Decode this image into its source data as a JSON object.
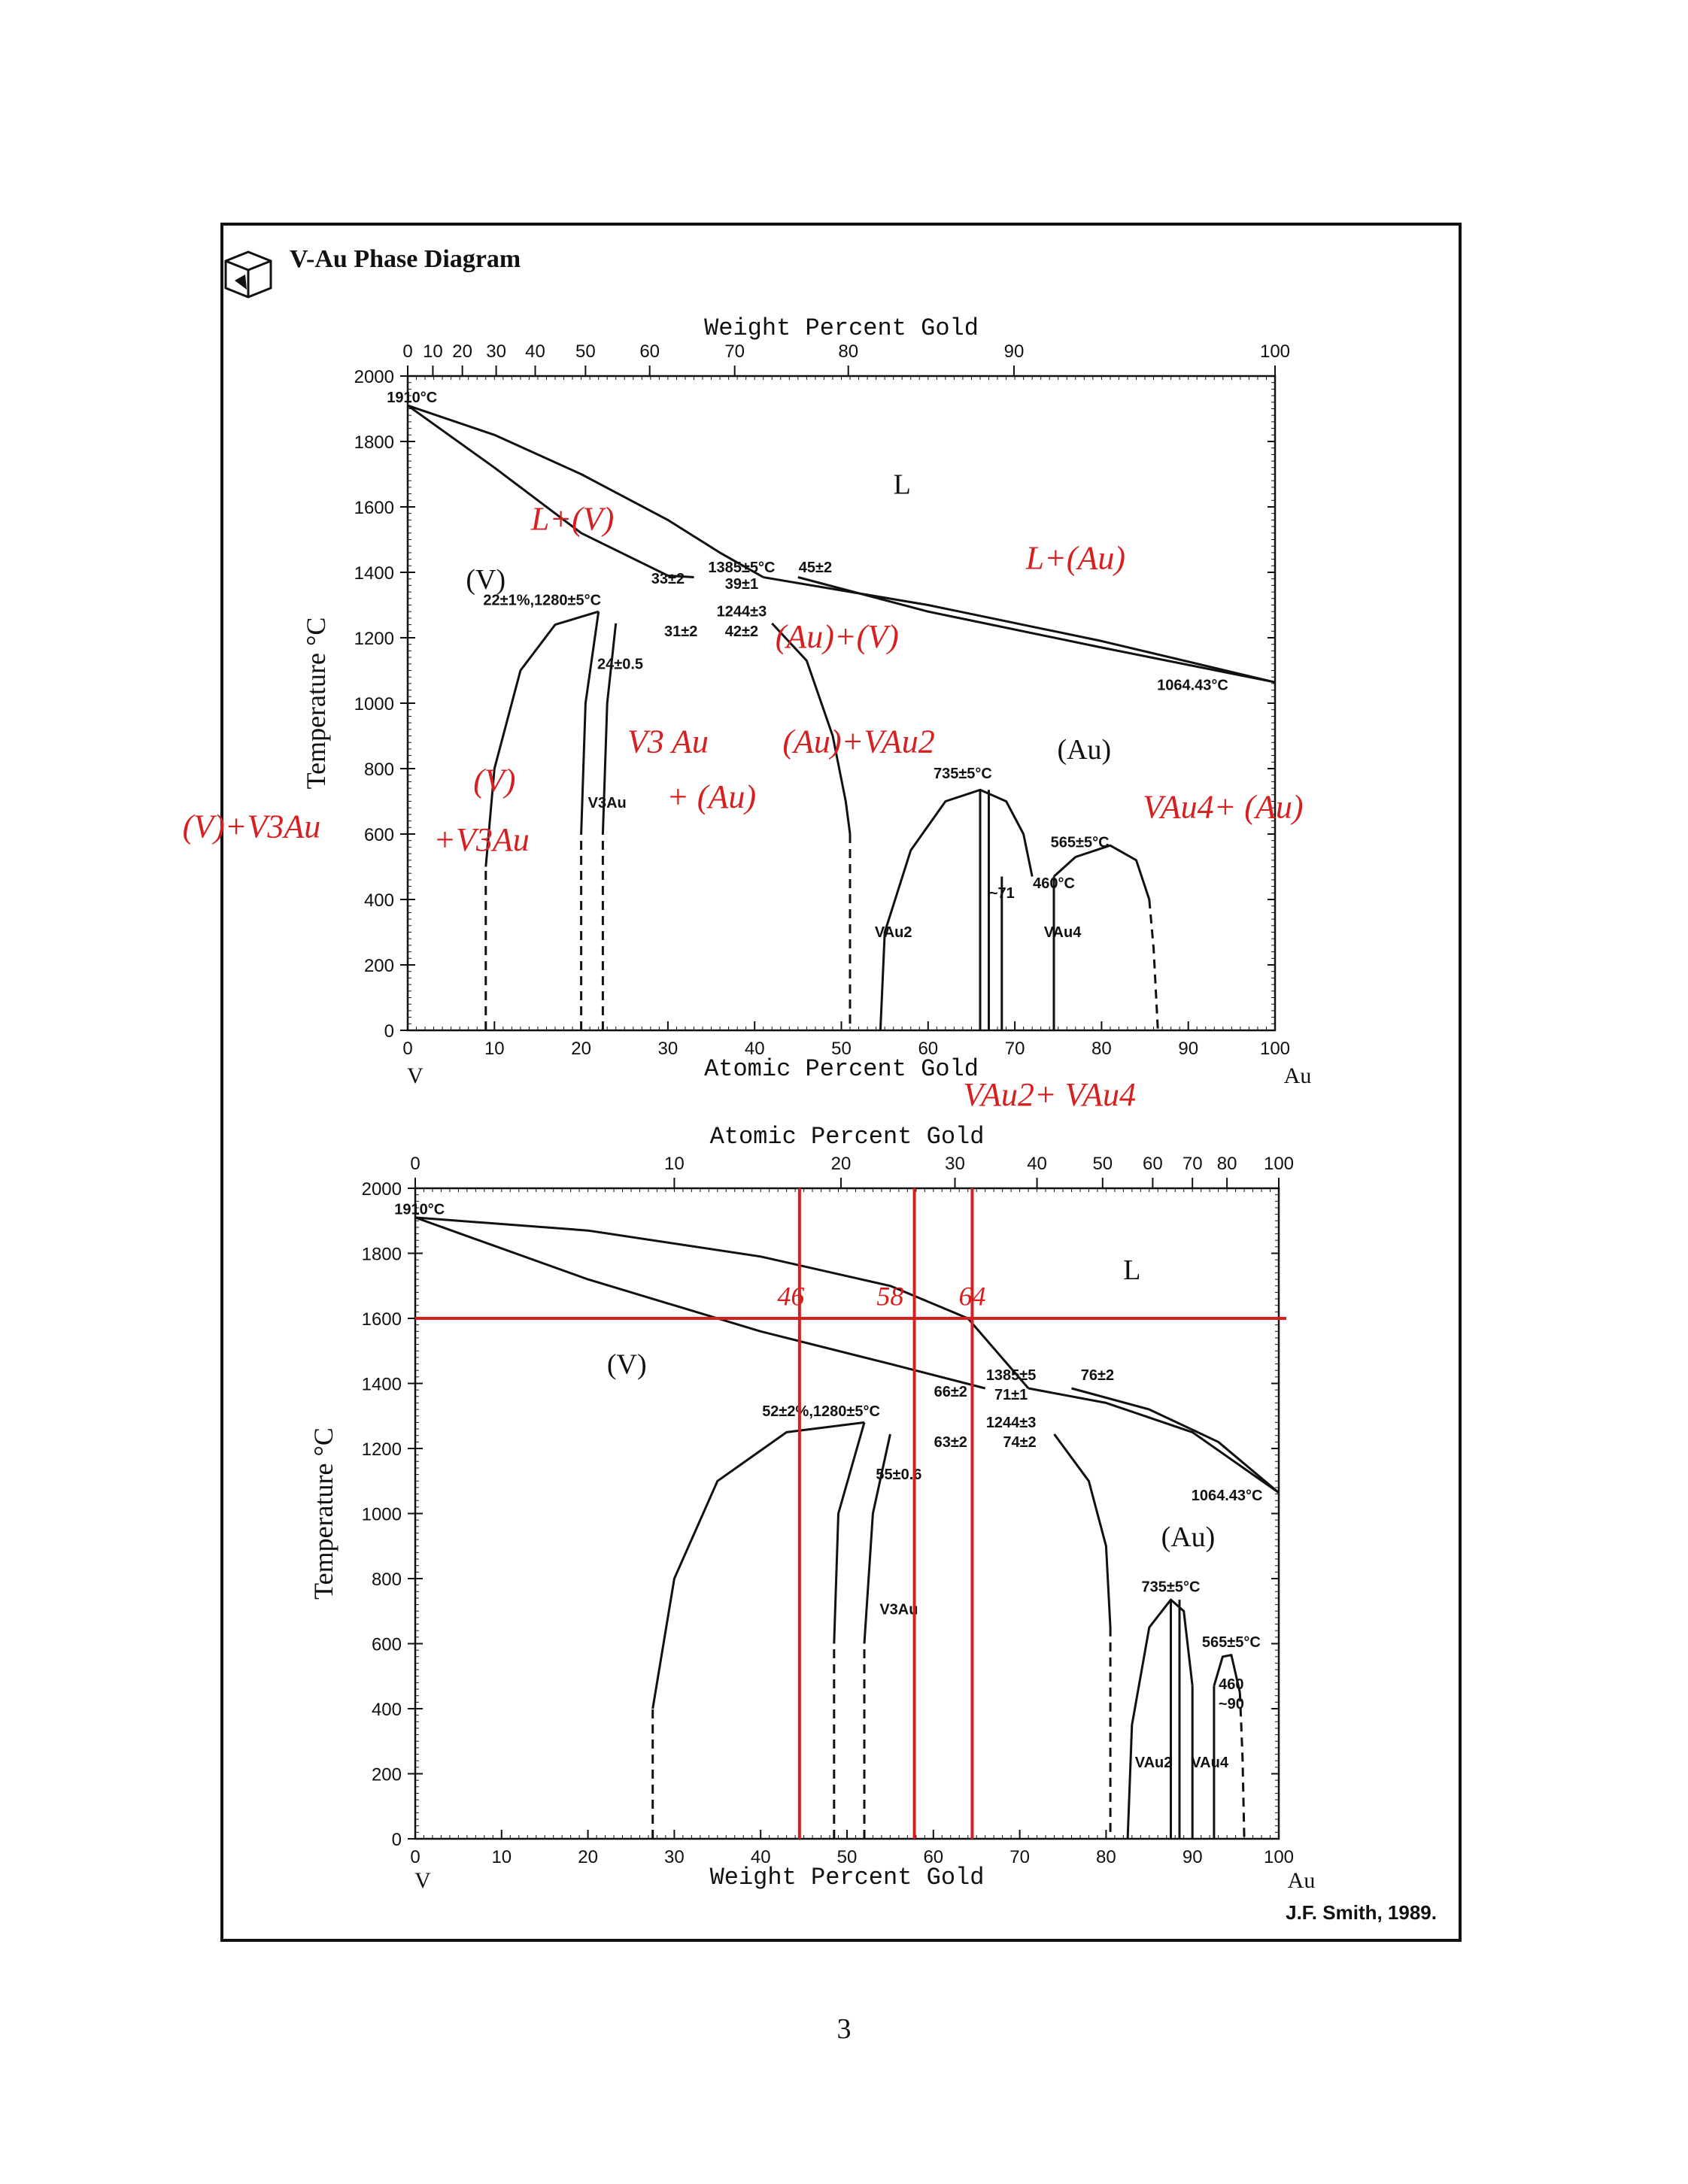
{
  "page": {
    "number": "3",
    "credit": "J.F. Smith, 1989."
  },
  "header": {
    "title": "V-Au Phase Diagram",
    "logo": "asm-cube-icon"
  },
  "colors": {
    "ink": "#111111",
    "annotation": "#d62020",
    "paper": "#ffffff"
  },
  "chart_data": [
    {
      "type": "line",
      "title": "V-Au Phase Diagram (atomic percent)",
      "xlabel": "Atomic Percent Gold",
      "x2label": "Weight Percent Gold",
      "ylabel": "Temperature °C",
      "xlim": [
        0,
        100
      ],
      "ylim": [
        0,
        2000
      ],
      "x_ticks": [
        "0",
        "10",
        "20",
        "30",
        "40",
        "50",
        "60",
        "70",
        "80",
        "90",
        "100"
      ],
      "x2_ticks": [
        {
          "label": "0",
          "at": 0
        },
        {
          "label": "10",
          "at": 2.9
        },
        {
          "label": "20",
          "at": 6.3
        },
        {
          "label": "30",
          "at": 10.2
        },
        {
          "label": "40",
          "at": 14.7
        },
        {
          "label": "50",
          "at": 20.5
        },
        {
          "label": "60",
          "at": 27.9
        },
        {
          "label": "70",
          "at": 37.7
        },
        {
          "label": "80",
          "at": 50.8
        },
        {
          "label": "90",
          "at": 69.9
        },
        {
          "label": "100",
          "at": 100
        }
      ],
      "y_ticks": [
        "0",
        "200",
        "400",
        "600",
        "800",
        "1000",
        "1200",
        "1400",
        "1600",
        "1800",
        "2000"
      ],
      "end_labels": {
        "left": "V",
        "right": "Au"
      },
      "series": [
        {
          "name": "liquidus-left",
          "points": [
            [
              0,
              1910
            ],
            [
              10,
              1820
            ],
            [
              20,
              1700
            ],
            [
              30,
              1560
            ],
            [
              36,
              1460
            ],
            [
              41,
              1385
            ]
          ]
        },
        {
          "name": "solidus-left",
          "points": [
            [
              0,
              1910
            ],
            [
              10,
              1720
            ],
            [
              20,
              1520
            ],
            [
              30,
              1390
            ],
            [
              33,
              1385
            ]
          ]
        },
        {
          "name": "liquidus-right",
          "points": [
            [
              41,
              1385
            ],
            [
              60,
              1300
            ],
            [
              80,
              1190
            ],
            [
              100,
              1064
            ]
          ]
        },
        {
          "name": "solidus-right",
          "points": [
            [
              45,
              1385
            ],
            [
              60,
              1280
            ],
            [
              80,
              1170
            ],
            [
              100,
              1064
            ]
          ]
        },
        {
          "name": "v-solvus",
          "points": [
            [
              9,
              0
            ],
            [
              9,
              500
            ],
            [
              10,
              800
            ],
            [
              13,
              1100
            ],
            [
              17,
              1240
            ],
            [
              22,
              1280
            ]
          ],
          "dashed_below": 500
        },
        {
          "name": "v3au-left",
          "points": [
            [
              20,
              0
            ],
            [
              20,
              600
            ],
            [
              20.5,
              1000
            ],
            [
              22,
              1280
            ]
          ],
          "dashed_below": 600
        },
        {
          "name": "v3au-right",
          "points": [
            [
              22.5,
              0
            ],
            [
              22.5,
              600
            ],
            [
              23,
              1000
            ],
            [
              24,
              1244
            ]
          ],
          "dashed_below": 600
        },
        {
          "name": "au-solvus",
          "points": [
            [
              42,
              1244
            ],
            [
              46,
              1130
            ],
            [
              49,
              900
            ],
            [
              50.5,
              700
            ],
            [
              51,
              600
            ],
            [
              51,
              0
            ]
          ],
          "dashed_below": 600
        },
        {
          "name": "vau2-dome",
          "points": [
            [
              54.5,
              0
            ],
            [
              55,
              300
            ],
            [
              58,
              550
            ],
            [
              62,
              700
            ],
            [
              66,
              735
            ],
            [
              69,
              700
            ],
            [
              71,
              600
            ],
            [
              72,
              470
            ]
          ]
        },
        {
          "name": "vau2-line",
          "points": [
            [
              66,
              0
            ],
            [
              66,
              735
            ]
          ]
        },
        {
          "name": "vau2-right",
          "points": [
            [
              67,
              0
            ],
            [
              67,
              735
            ]
          ]
        },
        {
          "name": "vau4-left",
          "points": [
            [
              68.5,
              0
            ],
            [
              68.5,
              470
            ]
          ]
        },
        {
          "name": "vau4-right",
          "points": [
            [
              74.5,
              0
            ],
            [
              74.5,
              470
            ]
          ]
        },
        {
          "name": "au-dome-right",
          "points": [
            [
              74.5,
              470
            ],
            [
              77,
              530
            ],
            [
              81,
              565
            ],
            [
              84,
              520
            ],
            [
              85.5,
              400
            ],
            [
              86,
              250
            ],
            [
              86.5,
              0
            ]
          ],
          "dashed_below": 400
        }
      ],
      "annotations": [
        {
          "text": "1910°C",
          "x": 0.5,
          "y": 1920
        },
        {
          "text": "L",
          "x": 57,
          "y": 1640
        },
        {
          "text": "(V)",
          "x": 9,
          "y": 1350
        },
        {
          "text": "(Au)",
          "x": 78,
          "y": 830
        },
        {
          "text": "1385±5°C",
          "x": 38.5,
          "y": 1400
        },
        {
          "text": "45±2",
          "x": 47,
          "y": 1400
        },
        {
          "text": "33±2",
          "x": 30,
          "y": 1365
        },
        {
          "text": "39±1",
          "x": 38.5,
          "y": 1350
        },
        {
          "text": "22±1%,1280±5°C",
          "x": 15.5,
          "y": 1300
        },
        {
          "text": "1244±3",
          "x": 38.5,
          "y": 1265
        },
        {
          "text": "31±2",
          "x": 31.5,
          "y": 1205
        },
        {
          "text": "42±2",
          "x": 38.5,
          "y": 1205
        },
        {
          "text": "24±0.5",
          "x": 24.5,
          "y": 1105
        },
        {
          "text": "1064.43°C",
          "x": 90.5,
          "y": 1040
        },
        {
          "text": "735±5°C",
          "x": 64,
          "y": 770
        },
        {
          "text": "565±5°C",
          "x": 77.5,
          "y": 560
        },
        {
          "text": "460°C",
          "x": 74.5,
          "y": 435
        },
        {
          "text": "~71",
          "x": 68.5,
          "y": 405
        },
        {
          "text": "V3Au",
          "x": 23,
          "y": 680
        },
        {
          "text": "VAu2",
          "x": 56,
          "y": 285
        },
        {
          "text": "VAu4",
          "x": 75.5,
          "y": 285
        }
      ],
      "handwritten": [
        {
          "text": "L+(V)",
          "x": 19,
          "y": 1530
        },
        {
          "text": "L+(Au)",
          "x": 77,
          "y": 1410
        },
        {
          "text": "(Au)+(V)",
          "x": 49.5,
          "y": 1170
        },
        {
          "text": "(Au)+VAu2",
          "x": 52,
          "y": 850
        },
        {
          "text": "V3 Au",
          "x": 30,
          "y": 850
        },
        {
          "text": "+ (Au)",
          "x": 35,
          "y": 680
        },
        {
          "text": "(V)",
          "x": 10,
          "y": 730
        },
        {
          "text": "+V3Au",
          "x": 8.5,
          "y": 550
        },
        {
          "text": "(V)+V3Au",
          "x": -18,
          "y": 590
        },
        {
          "text": "VAu4+ (Au)",
          "x": 94,
          "y": 650
        },
        {
          "text": "VAu2+ VAu4",
          "x": 74,
          "y": -230
        }
      ]
    },
    {
      "type": "line",
      "title": "V-Au Phase Diagram (weight percent)",
      "xlabel": "Weight Percent Gold",
      "x2label": "Atomic Percent Gold",
      "ylabel": "Temperature °C",
      "xlim": [
        0,
        100
      ],
      "ylim": [
        0,
        2000
      ],
      "x_ticks": [
        "0",
        "10",
        "20",
        "30",
        "40",
        "50",
        "60",
        "70",
        "80",
        "90",
        "100"
      ],
      "x2_ticks": [
        {
          "label": "0",
          "at": 0
        },
        {
          "label": "10",
          "at": 30
        },
        {
          "label": "20",
          "at": 49.3
        },
        {
          "label": "30",
          "at": 62.5
        },
        {
          "label": "40",
          "at": 72
        },
        {
          "label": "50",
          "at": 79.6
        },
        {
          "label": "60",
          "at": 85.4
        },
        {
          "label": "70",
          "at": 90
        },
        {
          "label": "80",
          "at": 94
        },
        {
          "label": "100",
          "at": 100
        }
      ],
      "y_ticks": [
        "0",
        "200",
        "400",
        "600",
        "800",
        "1000",
        "1200",
        "1400",
        "1600",
        "1800",
        "2000"
      ],
      "end_labels": {
        "left": "V",
        "right": "Au"
      },
      "series": [
        {
          "name": "liquidus-upper",
          "points": [
            [
              0,
              1910
            ],
            [
              20,
              1870
            ],
            [
              40,
              1790
            ],
            [
              55,
              1700
            ],
            [
              64,
              1600
            ],
            [
              71,
              1385
            ]
          ]
        },
        {
          "name": "solidus-lower",
          "points": [
            [
              0,
              1910
            ],
            [
              20,
              1720
            ],
            [
              40,
              1560
            ],
            [
              55,
              1460
            ],
            [
              66,
              1385
            ]
          ]
        },
        {
          "name": "liquidus-right-a",
          "points": [
            [
              71,
              1385
            ],
            [
              80,
              1340
            ],
            [
              90,
              1250
            ],
            [
              100,
              1064
            ]
          ]
        },
        {
          "name": "liquidus-right-b",
          "points": [
            [
              76,
              1385
            ],
            [
              85,
              1320
            ],
            [
              93,
              1220
            ],
            [
              100,
              1064
            ]
          ]
        },
        {
          "name": "v-solvus",
          "points": [
            [
              27.5,
              0
            ],
            [
              27.5,
              400
            ],
            [
              30,
              800
            ],
            [
              35,
              1100
            ],
            [
              43,
              1250
            ],
            [
              52,
              1280
            ]
          ],
          "dashed_below": 400
        },
        {
          "name": "v3au-left",
          "points": [
            [
              48.5,
              0
            ],
            [
              48.5,
              600
            ],
            [
              49,
              1000
            ],
            [
              52,
              1280
            ]
          ],
          "dashed_below": 600
        },
        {
          "name": "v3au-right",
          "points": [
            [
              52,
              0
            ],
            [
              52,
              600
            ],
            [
              53,
              1000
            ],
            [
              55,
              1244
            ]
          ],
          "dashed_below": 600
        },
        {
          "name": "au-solvus",
          "points": [
            [
              74,
              1244
            ],
            [
              78,
              1100
            ],
            [
              80,
              900
            ],
            [
              80.5,
              650
            ],
            [
              80.5,
              0
            ]
          ],
          "dashed_below": 650
        },
        {
          "name": "vau2-dome",
          "points": [
            [
              82.5,
              0
            ],
            [
              83,
              350
            ],
            [
              85,
              650
            ],
            [
              87.5,
              735
            ],
            [
              89,
              700
            ],
            [
              90,
              470
            ]
          ]
        },
        {
          "name": "vau2-line-a",
          "points": [
            [
              87.5,
              0
            ],
            [
              87.5,
              735
            ]
          ]
        },
        {
          "name": "vau2-line-b",
          "points": [
            [
              88.5,
              0
            ],
            [
              88.5,
              735
            ]
          ]
        },
        {
          "name": "vau4-left",
          "points": [
            [
              90,
              0
            ],
            [
              90,
              470
            ]
          ]
        },
        {
          "name": "vau4-right",
          "points": [
            [
              92.5,
              0
            ],
            [
              92.5,
              470
            ]
          ]
        },
        {
          "name": "au-dome-right",
          "points": [
            [
              92.5,
              470
            ],
            [
              93.5,
              560
            ],
            [
              94.5,
              565
            ],
            [
              95.5,
              450
            ],
            [
              95.8,
              250
            ],
            [
              96,
              0
            ]
          ],
          "dashed_below": 450
        }
      ],
      "annotations": [
        {
          "text": "1910°C",
          "x": 0.5,
          "y": 1920
        },
        {
          "text": "L",
          "x": 83,
          "y": 1720
        },
        {
          "text": "(V)",
          "x": 24.5,
          "y": 1430
        },
        {
          "text": "(Au)",
          "x": 89.5,
          "y": 900
        },
        {
          "text": "1385±5",
          "x": 69,
          "y": 1410
        },
        {
          "text": "76±2",
          "x": 79,
          "y": 1410
        },
        {
          "text": "66±2",
          "x": 62,
          "y": 1360
        },
        {
          "text": "71±1",
          "x": 69,
          "y": 1350
        },
        {
          "text": "52±2%,1280±5°C",
          "x": 47,
          "y": 1300
        },
        {
          "text": "1244±3",
          "x": 69,
          "y": 1265
        },
        {
          "text": "63±2",
          "x": 62,
          "y": 1205
        },
        {
          "text": "74±2",
          "x": 70,
          "y": 1205
        },
        {
          "text": "55±0.6",
          "x": 56,
          "y": 1105
        },
        {
          "text": "1064.43°C",
          "x": 94,
          "y": 1040
        },
        {
          "text": "735±5°C",
          "x": 87.5,
          "y": 760
        },
        {
          "text": "565±5°C",
          "x": 94.5,
          "y": 590
        },
        {
          "text": "460",
          "x": 94.5,
          "y": 460
        },
        {
          "text": "~90",
          "x": 94.5,
          "y": 400
        },
        {
          "text": "V3Au",
          "x": 56,
          "y": 690
        },
        {
          "text": "VAu2",
          "x": 85.5,
          "y": 220
        },
        {
          "text": "VAu4",
          "x": 92,
          "y": 220
        }
      ],
      "handwritten": [
        {
          "text": "46",
          "x": 43.5,
          "y": 1640
        },
        {
          "text": "58",
          "x": 55,
          "y": 1640
        },
        {
          "text": "64",
          "x": 64.5,
          "y": 1640
        }
      ],
      "guide_lines": {
        "horizontal_y": 1600,
        "vertical_x": [
          44.5,
          57.8,
          64.5
        ]
      }
    }
  ]
}
